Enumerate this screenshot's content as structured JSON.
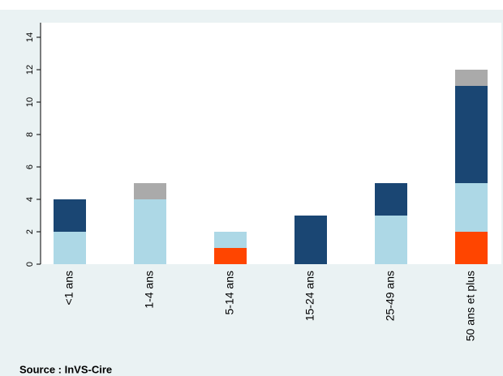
{
  "chart_data": {
    "type": "bar",
    "stacked": true,
    "categories": [
      "<1 ans",
      "1-4 ans",
      "5-14 ans",
      "15-24 ans",
      "25-49 ans",
      "50 ans et plus"
    ],
    "series": [
      {
        "color": "#ff4500",
        "values": [
          0,
          0,
          1,
          0,
          0,
          2
        ]
      },
      {
        "color": "#add8e6",
        "values": [
          2,
          4,
          1,
          0,
          3,
          3
        ]
      },
      {
        "color": "#1a4673",
        "values": [
          2,
          0,
          0,
          3,
          2,
          6
        ]
      },
      {
        "color": "#aaaaaa",
        "values": [
          0,
          1,
          0,
          0,
          0,
          1
        ]
      }
    ],
    "ylim": [
      0,
      14.9
    ],
    "yticks": [
      0,
      2,
      4,
      6,
      8,
      10,
      12,
      14
    ],
    "grid": false,
    "source": "Source : InVS-Cire"
  }
}
